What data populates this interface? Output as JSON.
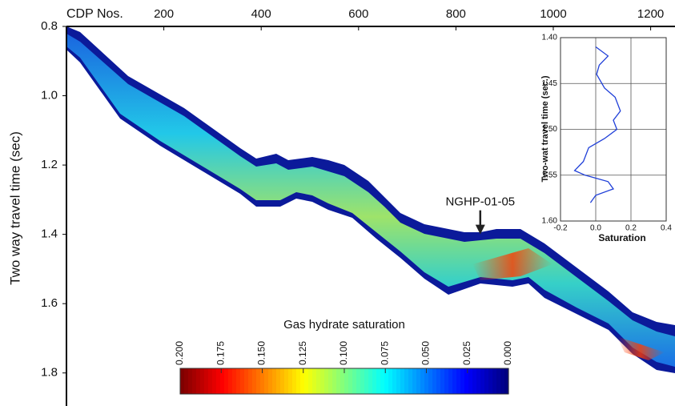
{
  "chart_data": [
    {
      "type": "section",
      "xlabel": "CDP Nos.",
      "ylabel": "Two way travel time (sec)",
      "xlim": [
        0,
        1250
      ],
      "xticks": [
        200,
        400,
        600,
        800,
        1000,
        1200
      ],
      "ylim": [
        0.8,
        1.9
      ],
      "yticks": [
        0.8,
        {
          "value": 1,
          "label": "1.0"
        },
        1.2,
        1.4,
        1.6,
        1.8
      ],
      "annotation": {
        "text": "NGHP-01-05",
        "x": 850,
        "y": 1.4
      },
      "colormap": "jet",
      "colorbar": {
        "title": "Gas hydrate saturation",
        "lim": [
          0,
          0.2
        ],
        "ticks": [
          {
            "value": 0.2,
            "label": "0.200"
          },
          {
            "value": 0.175,
            "label": "0.175"
          },
          {
            "value": 0.15,
            "label": "0.150"
          },
          {
            "value": 0.125,
            "label": "0.125"
          },
          {
            "value": 0.1,
            "label": "0.100"
          },
          {
            "value": 0.075,
            "label": "0.075"
          },
          {
            "value": 0.05,
            "label": "0.050"
          },
          {
            "value": 0.025,
            "label": "0.025"
          },
          {
            "value": 0,
            "label": "0.000"
          }
        ]
      }
    },
    {
      "type": "line",
      "xlabel": "Saturation",
      "ylabel": "Two-wat travel time (sec.)",
      "xlim": [
        -0.2,
        0.4
      ],
      "xticks": [
        -0.2,
        {
          "value": 0,
          "label": "0.0"
        },
        0.2,
        0.4
      ],
      "ylim": [
        1.4,
        1.6
      ],
      "yticks": [
        {
          "value": 1.4,
          "label": "1.40"
        },
        1.45,
        {
          "value": 1.5,
          "label": "1.50"
        },
        1.55,
        {
          "value": 1.6,
          "label": "1.60"
        }
      ],
      "grid": true,
      "y": [
        1.41,
        1.42,
        1.43,
        1.44,
        1.455,
        1.465,
        1.48,
        1.49,
        1.5,
        1.51,
        1.52,
        1.535,
        1.545,
        1.55,
        1.557,
        1.565,
        1.572,
        1.58
      ],
      "series": [
        {
          "name": "Saturation",
          "color": "#1f3fd8",
          "values": [
            0.0,
            0.07,
            0.02,
            0.005,
            0.05,
            0.11,
            0.14,
            0.1,
            0.12,
            0.05,
            -0.04,
            -0.07,
            -0.12,
            -0.06,
            0.07,
            0.1,
            0.0,
            -0.03
          ]
        }
      ]
    }
  ]
}
